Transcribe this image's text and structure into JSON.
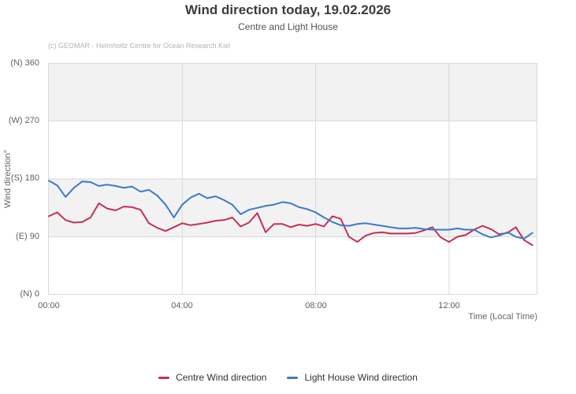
{
  "chart_data": {
    "type": "line",
    "title": "Wind direction today, 19.02.2026",
    "subtitle": "Centre and Light House",
    "credit": "(c) GEOMAR - Helmholtz Centre for Ocean Research Kiel",
    "xlabel": "Time (Local Time)",
    "ylabel": "Wind direction°",
    "grid": true,
    "legend_position": "bottom",
    "ylim": [
      0,
      360
    ],
    "xlim_hours": [
      0,
      14.65
    ],
    "alternate_band_color": "#f2f2f2",
    "grid_color": "#d8d8d8",
    "border_color": "#d9d9d9",
    "y_ticks": [
      {
        "label": "(N) 360",
        "value": 360
      },
      {
        "label": "(W) 270",
        "value": 270
      },
      {
        "label": "(S) 180",
        "value": 180
      },
      {
        "label": "(E) 90",
        "value": 90
      },
      {
        "label": "(N) 0",
        "value": 0
      }
    ],
    "x_ticks": [
      {
        "label": "00:00",
        "hour": 0
      },
      {
        "label": "04:00",
        "hour": 4
      },
      {
        "label": "08:00",
        "hour": 8
      },
      {
        "label": "12:00",
        "hour": 12
      }
    ],
    "x": [
      "00:00",
      "00:15",
      "00:30",
      "00:45",
      "01:00",
      "01:15",
      "01:30",
      "01:45",
      "02:00",
      "02:15",
      "02:30",
      "02:45",
      "03:00",
      "03:15",
      "03:30",
      "03:45",
      "04:00",
      "04:15",
      "04:30",
      "04:45",
      "05:00",
      "05:15",
      "05:30",
      "05:45",
      "06:00",
      "06:15",
      "06:30",
      "06:45",
      "07:00",
      "07:15",
      "07:30",
      "07:45",
      "08:00",
      "08:15",
      "08:30",
      "08:45",
      "09:00",
      "09:15",
      "09:30",
      "09:45",
      "10:00",
      "10:15",
      "10:30",
      "10:45",
      "11:00",
      "11:15",
      "11:30",
      "11:45",
      "12:00",
      "12:15",
      "12:30",
      "12:45",
      "13:00",
      "13:15",
      "13:30",
      "13:45",
      "14:00",
      "14:15",
      "14:30"
    ],
    "series": [
      {
        "name": "Centre Wind direction",
        "color": "#c23155",
        "values": [
          122,
          128,
          116,
          112,
          113,
          120,
          142,
          134,
          131,
          137,
          136,
          132,
          111,
          104,
          99,
          105,
          111,
          108,
          110,
          112,
          115,
          116,
          120,
          106,
          112,
          127,
          97,
          110,
          110,
          105,
          109,
          107,
          110,
          106,
          122,
          118,
          90,
          82,
          92,
          96,
          97,
          95,
          95,
          95,
          96,
          100,
          105,
          89,
          82,
          90,
          93,
          101,
          107,
          102,
          94,
          96,
          105,
          85,
          77
        ]
      },
      {
        "name": "Light House Wind direction",
        "color": "#3b79c9",
        "values": [
          177,
          170,
          152,
          166,
          176,
          175,
          169,
          171,
          169,
          166,
          168,
          160,
          163,
          154,
          140,
          120,
          140,
          151,
          157,
          150,
          153,
          147,
          140,
          125,
          132,
          135,
          138,
          140,
          144,
          142,
          136,
          133,
          128,
          120,
          113,
          108,
          107,
          110,
          111,
          109,
          107,
          105,
          103,
          103,
          104,
          102,
          101,
          101,
          101,
          103,
          101,
          101,
          94,
          89,
          92,
          97,
          90,
          87,
          96
        ]
      }
    ]
  }
}
